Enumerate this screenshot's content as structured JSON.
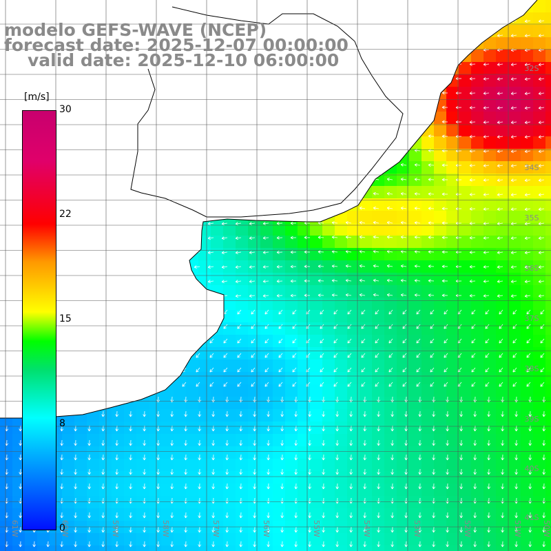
{
  "title": {
    "line1": "modelo GEFS-WAVE (NCEP)",
    "line2": "forecast date: 2025-12-07 00:00:00",
    "line3": "valid date: 2025-12-10 06:00:00"
  },
  "colorbar": {
    "unit": "[m/s]",
    "ticks": [
      "30",
      "22",
      "15",
      "8",
      "0"
    ],
    "tick_values": [
      30,
      22,
      15,
      8,
      0
    ],
    "colors": [
      "#0010ff",
      "#00b0ff",
      "#00ffff",
      "#00e070",
      "#00ff00",
      "#ffff00",
      "#ff9800",
      "#ff0000",
      "#c8006e"
    ]
  },
  "map": {
    "lat_labels": [
      "32S",
      "34S",
      "35S",
      "36S",
      "37S",
      "38S",
      "39S",
      "40S",
      "41S"
    ],
    "lon_labels": [
      "61W",
      "60W",
      "59W",
      "58W",
      "57W",
      "56W",
      "55W",
      "54W",
      "53W",
      "52W",
      "51W",
      "50W"
    ],
    "grid": true,
    "vector_field": "wind arrows",
    "colors": {
      "land": "#ffffff",
      "coast": "#000000",
      "grid": "#555555",
      "arrow": "#ffffff",
      "label": "#8a8a8a"
    }
  }
}
